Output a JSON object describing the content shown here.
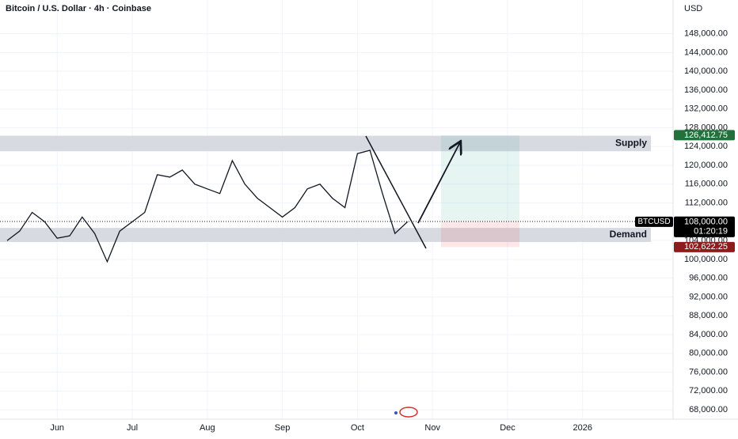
{
  "chart_data": {
    "type": "line",
    "title": "Bitcoin / U.S. Dollar · 4h · Coinbase",
    "y_axis_label": "USD",
    "categories": [
      null,
      null,
      null,
      null,
      "Jun",
      null,
      null,
      null,
      null,
      null,
      "Jul",
      null,
      null,
      null,
      null,
      null,
      "Aug",
      null,
      null,
      null,
      null,
      null,
      "Sep",
      null,
      null,
      null,
      null,
      null,
      "Oct",
      null,
      null,
      null,
      null,
      null,
      "Nov",
      null,
      null,
      null,
      null,
      null,
      "Dec",
      null,
      null,
      null,
      null,
      null,
      "2026",
      null,
      null,
      null,
      null,
      null
    ],
    "series": [
      {
        "name": "BTCUSD",
        "color": "#131722",
        "values": [
          104000,
          106000,
          110000,
          108000,
          104500,
          105000,
          109000,
          105500,
          99500,
          106000,
          108000,
          110000,
          118000,
          117500,
          119000,
          116000,
          115000,
          114000,
          121000,
          116000,
          113000,
          111000,
          109000,
          111000,
          115000,
          116000,
          113000,
          111000,
          122500,
          123200,
          114000,
          105500,
          108000,
          null,
          null,
          null,
          null,
          null,
          null,
          null,
          null,
          null,
          null,
          null,
          null,
          null,
          null,
          null,
          null,
          null,
          null,
          null
        ]
      }
    ],
    "ylim": [
      66000,
      155000
    ],
    "yticks": [
      {
        "value": 68000,
        "label": "68,000.00"
      },
      {
        "value": 72000,
        "label": "72,000.00"
      },
      {
        "value": 76000,
        "label": "76,000.00"
      },
      {
        "value": 80000,
        "label": "80,000.00"
      },
      {
        "value": 84000,
        "label": "84,000.00"
      },
      {
        "value": 88000,
        "label": "88,000.00"
      },
      {
        "value": 92000,
        "label": "92,000.00"
      },
      {
        "value": 96000,
        "label": "96,000.00"
      },
      {
        "value": 100000,
        "label": "100,000.00"
      },
      {
        "value": 104000,
        "label": "104,000.00"
      },
      {
        "value": 112000,
        "label": "112,000.00"
      },
      {
        "value": 116000,
        "label": "116,000.00"
      },
      {
        "value": 120000,
        "label": "120,000.00"
      },
      {
        "value": 124000,
        "label": "124,000.00"
      },
      {
        "value": 128000,
        "label": "128,000.00"
      },
      {
        "value": 132000,
        "label": "132,000.00"
      },
      {
        "value": 136000,
        "label": "136,000.00"
      },
      {
        "value": 140000,
        "label": "140,000.00"
      },
      {
        "value": 144000,
        "label": "144,000.00"
      },
      {
        "value": 148000,
        "label": "148,000.00"
      }
    ],
    "grid": true,
    "zones": [
      {
        "label": "Supply",
        "range": [
          123000,
          126300
        ]
      },
      {
        "label": "Demand",
        "range": [
          103700,
          106700
        ]
      }
    ],
    "price_tags": [
      {
        "value": 126412.75,
        "label": "126,412.75",
        "color": "#22703a"
      },
      {
        "value": 108060.08,
        "label": "108,060.08",
        "color": "#9598a1"
      },
      {
        "value": 108000,
        "label": "108,000.00",
        "color": "#000000",
        "countdown": "01:20:19"
      },
      {
        "value": 102622.25,
        "label": "102,622.25",
        "color": "#8e1c1c"
      }
    ]
  }
}
